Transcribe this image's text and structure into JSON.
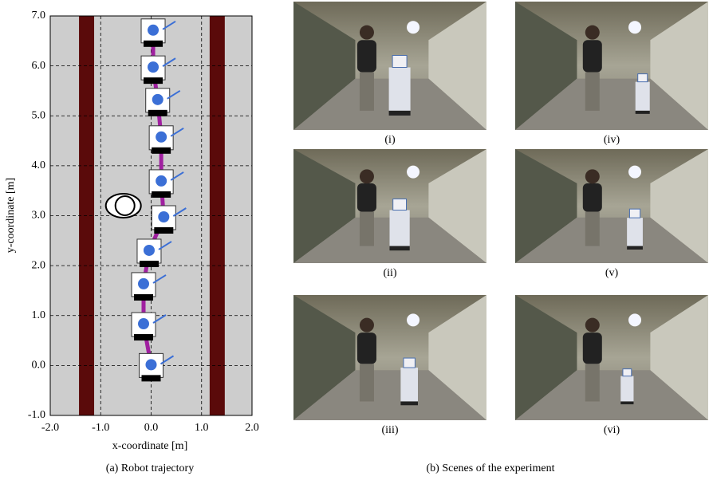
{
  "chart_data": {
    "type": "trajectory",
    "caption": "(a) Robot trajectory",
    "x_label": "x-coordinate [m]",
    "y_label": "y-coordinate [m]",
    "xlim": [
      -2,
      2
    ],
    "ylim": [
      -1,
      7
    ],
    "xticks": [
      {
        "value": -2,
        "label": "-2.0"
      },
      {
        "value": -1,
        "label": "-1.0"
      },
      {
        "value": 0,
        "label": "0.0"
      },
      {
        "value": 1,
        "label": "1.0"
      },
      {
        "value": 2,
        "label": "2.0"
      }
    ],
    "yticks": [
      {
        "value": -1,
        "label": "-1.0"
      },
      {
        "value": 0,
        "label": "0.0"
      },
      {
        "value": 1,
        "label": "1.0"
      },
      {
        "value": 2,
        "label": "2.0"
      },
      {
        "value": 3,
        "label": "3.0"
      },
      {
        "value": 4,
        "label": "4.0"
      },
      {
        "value": 5,
        "label": "5.0"
      },
      {
        "value": 6,
        "label": "6.0"
      },
      {
        "value": 7,
        "label": "7.0"
      }
    ],
    "grid": true,
    "color": "#a020a0",
    "x": [
      0.0,
      -0.15,
      -0.15,
      -0.04,
      0.25,
      0.2,
      0.2,
      0.13,
      0.04,
      0.04
    ],
    "values": [
      0.0,
      0.82,
      1.62,
      2.29,
      2.96,
      3.68,
      4.56,
      5.31,
      5.96,
      6.7
    ],
    "walls": [
      [
        -1.43,
        -1.13
      ],
      [
        1.16,
        1.46
      ]
    ],
    "person": {
      "x": -0.55,
      "y": 3.2
    }
  },
  "scenes": {
    "caption": "(b) Scenes of the experiment",
    "labels": [
      "(i)",
      "(ii)",
      "(iii)",
      "(iv)",
      "(v)",
      "(vi)"
    ]
  }
}
